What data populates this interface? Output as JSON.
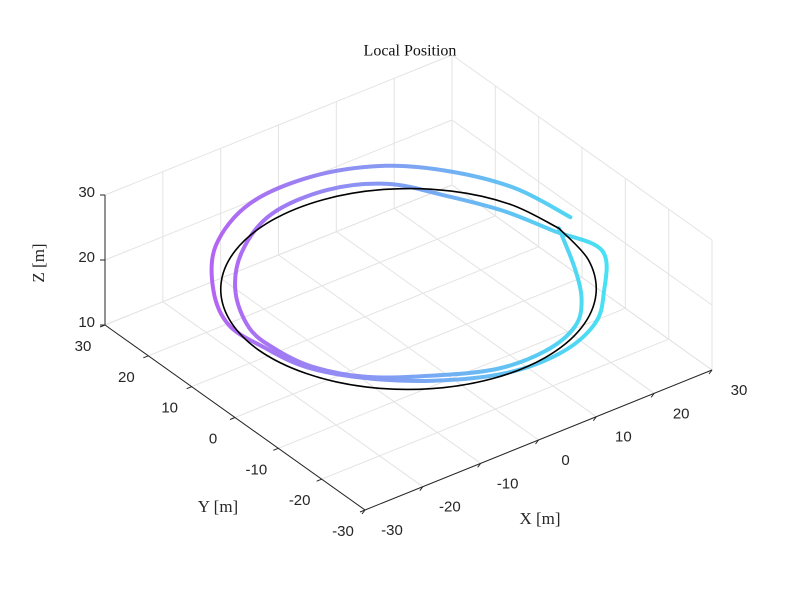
{
  "chart_data": {
    "type": "line3d",
    "title": "Local Position",
    "xlabel": "X [m]",
    "ylabel": "Y [m]",
    "zlabel": "Z [m]",
    "xlim": [
      -30,
      30
    ],
    "ylim": [
      -30,
      30
    ],
    "zlim": [
      10,
      30
    ],
    "xticks": [
      -30,
      -20,
      -10,
      0,
      10,
      20,
      30
    ],
    "yticks": [
      -30,
      -20,
      -10,
      0,
      10,
      20,
      30
    ],
    "zticks": [
      10,
      20,
      30
    ],
    "grid": true,
    "series": [
      {
        "color_gradient": [
          "#b04ff2",
          "#2ee3f2"
        ],
        "x": [
          28,
          25.4,
          19.9,
          13.5,
          5.0,
          -5.2,
          -14.5,
          -20.7,
          -24.4,
          -25,
          -24.4,
          -20.7,
          -14.5,
          -5.2,
          5.0,
          14,
          20.7,
          26.3,
          25,
          22.6,
          17.6,
          12,
          4.4,
          -4.5,
          -12.5,
          -18.4,
          -21.6,
          -23,
          -22.6,
          -19.2,
          -13,
          -4.7,
          4.5,
          12.5,
          18.4,
          22.6,
          26
        ],
        "y": [
          0,
          9.2,
          16.7,
          23.4,
          28.6,
          29.6,
          25.1,
          17.4,
          8.9,
          0,
          -8.9,
          -17.4,
          -25.1,
          -29.6,
          -28.6,
          -24.2,
          -17.4,
          -9.6,
          0,
          8.2,
          14.8,
          20.8,
          24.6,
          25.6,
          21.7,
          15.4,
          7.9,
          0,
          -8.2,
          -16.1,
          -22.5,
          -26.6,
          -25.6,
          -21.7,
          -15.4,
          -8.2,
          0
        ],
        "z": [
          20,
          21,
          22,
          22,
          21,
          20,
          19,
          18,
          18,
          19,
          20,
          21,
          22,
          22,
          21,
          20,
          19,
          20,
          19,
          19,
          20,
          21,
          21,
          20,
          19,
          18,
          17,
          18,
          19,
          20,
          21,
          21,
          20,
          19,
          18,
          18,
          19
        ]
      },
      {
        "color": "#000000",
        "x": [
          26,
          24.4,
          19.9,
          13,
          4.5,
          -4.5,
          -13,
          -19.9,
          -24.4,
          -26,
          -24.4,
          -19.9,
          -13,
          -4.5,
          4.5,
          13,
          19.9,
          24.4,
          26
        ],
        "y": [
          0,
          8.9,
          16.7,
          22.5,
          25.6,
          25.6,
          22.5,
          16.7,
          8.9,
          0,
          -8.9,
          -16.7,
          -22.5,
          -25.6,
          -25.6,
          -22.5,
          -16.7,
          -8.9,
          0
        ],
        "z": [
          19,
          19,
          19,
          19,
          19,
          19,
          19,
          19,
          19,
          19,
          19,
          19,
          19,
          19,
          19,
          19,
          19,
          19,
          19
        ]
      }
    ]
  }
}
